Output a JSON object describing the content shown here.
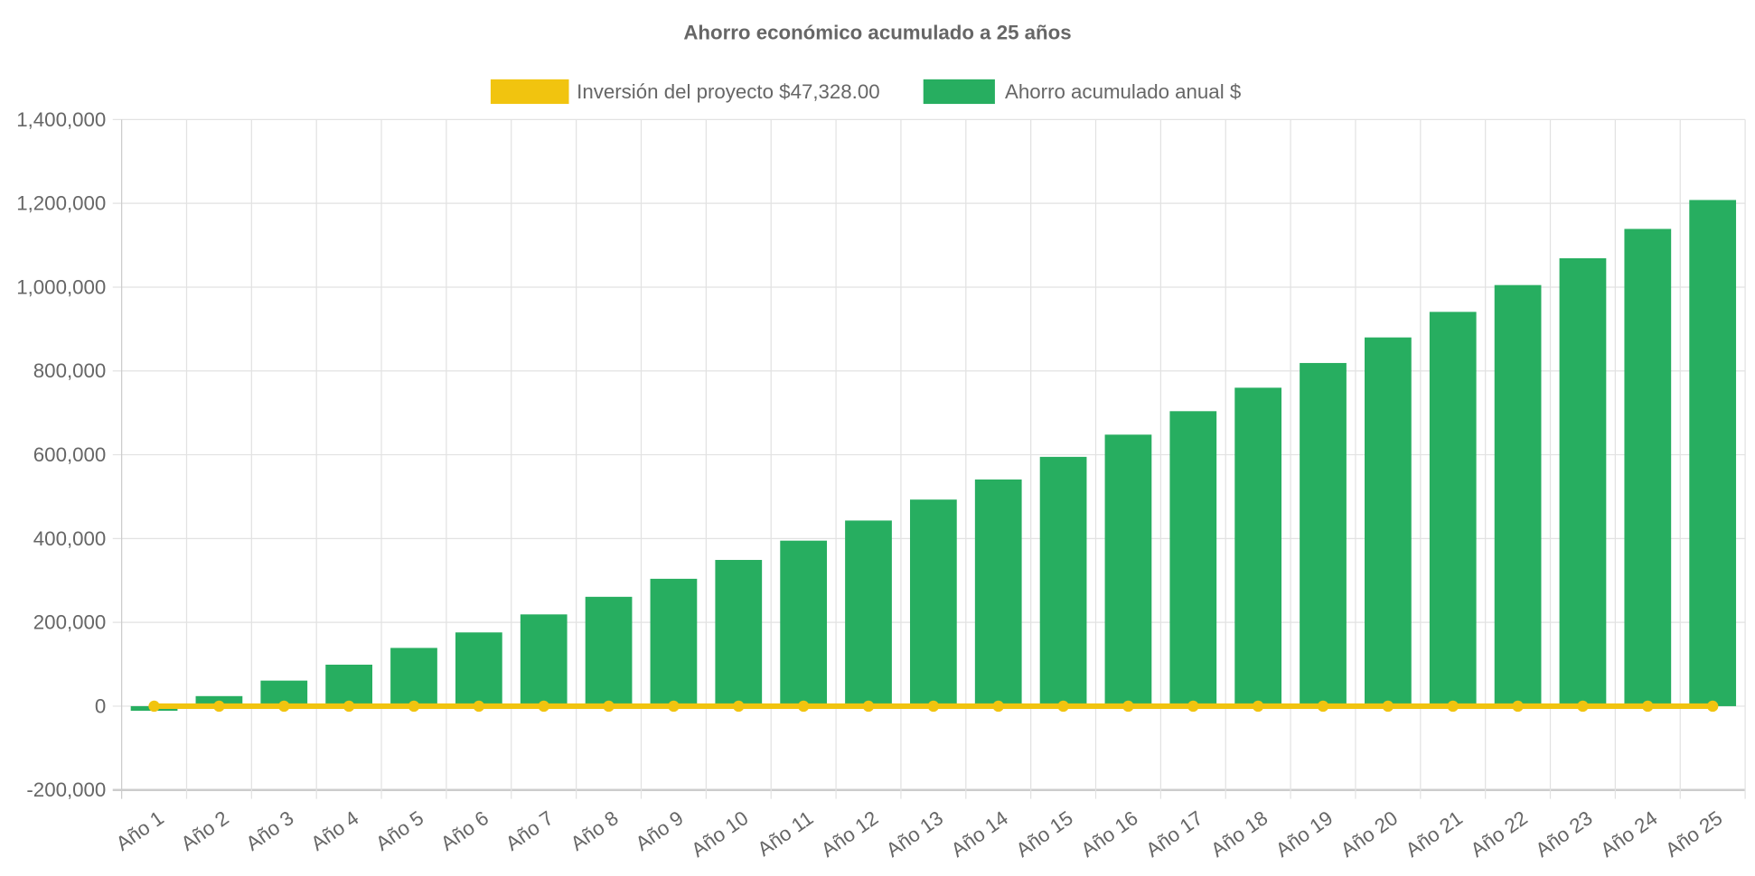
{
  "chart_data": {
    "type": "bar",
    "title": "Ahorro económico acumulado a 25 años",
    "categories": [
      "Año 1",
      "Año 2",
      "Año 3",
      "Año 4",
      "Año 5",
      "Año 6",
      "Año 7",
      "Año 8",
      "Año 9",
      "Año 10",
      "Año 11",
      "Año 12",
      "Año 13",
      "Año 14",
      "Año 15",
      "Año 16",
      "Año 17",
      "Año 18",
      "Año 19",
      "Año 20",
      "Año 21",
      "Año 22",
      "Año 23",
      "Año 24",
      "Año 25"
    ],
    "series": [
      {
        "name": "Inversión del proyecto $47,328.00",
        "type": "line",
        "color": "#f1c40f",
        "values": [
          0,
          0,
          0,
          0,
          0,
          0,
          0,
          0,
          0,
          0,
          0,
          0,
          0,
          0,
          0,
          0,
          0,
          0,
          0,
          0,
          0,
          0,
          0,
          0,
          0
        ]
      },
      {
        "name": "Ahorro acumulado anual $",
        "type": "bar",
        "color": "#27ae60",
        "values": [
          -11000,
          24000,
          61000,
          99000,
          139000,
          176000,
          219000,
          261000,
          304000,
          349000,
          395000,
          443000,
          493000,
          541000,
          595000,
          648000,
          704000,
          760000,
          819000,
          880000,
          941000,
          1005000,
          1069000,
          1139000,
          1208000
        ]
      }
    ],
    "ylim": [
      -200000,
      1400000
    ],
    "yticks": [
      "1,400,000",
      "1,200,000",
      "1,000,000",
      "800,000",
      "600,000",
      "400,000",
      "200,000",
      "0",
      "-200,000"
    ],
    "ytick_values": [
      1400000,
      1200000,
      1000000,
      800000,
      600000,
      400000,
      200000,
      0,
      -200000
    ],
    "grid": true,
    "legend": "top"
  }
}
